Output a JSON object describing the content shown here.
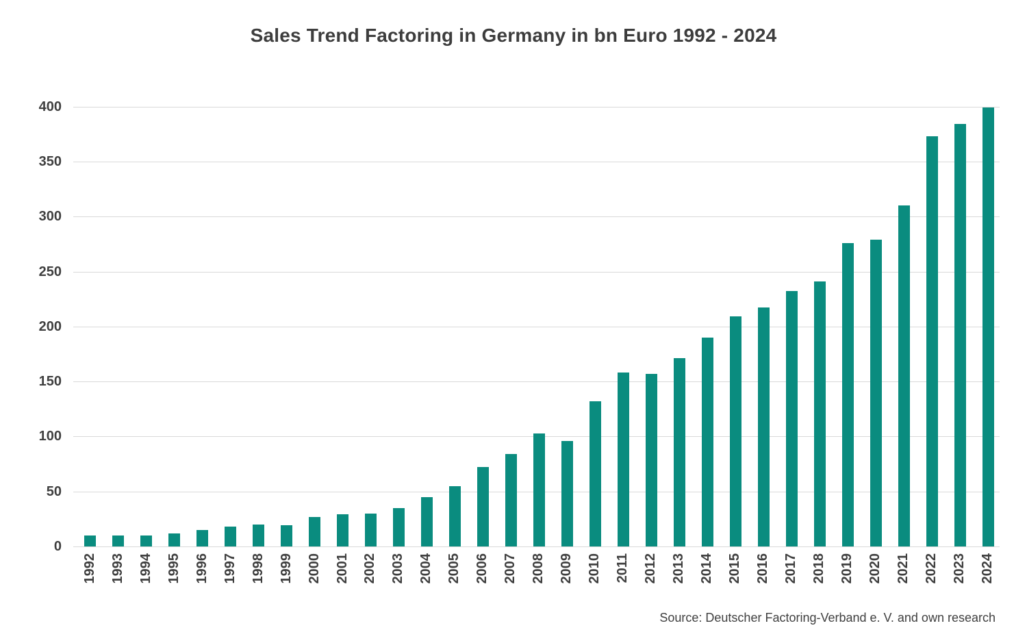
{
  "title": "Sales Trend Factoring in Germany in bn Euro 1992 - 2024",
  "source": "Source: Deutscher Factoring-Verband e. V. and own research",
  "colors": {
    "bar": "#0a8c7f",
    "gridline": "#d9d9d9",
    "text": "#3f3f3f",
    "background": "#ffffff"
  },
  "chart_data": {
    "type": "bar",
    "title": "Sales Trend Factoring in Germany in bn Euro 1992 - 2024",
    "categories": [
      "1992",
      "1993",
      "1994",
      "1995",
      "1996",
      "1997",
      "1998",
      "1999",
      "2000",
      "2001",
      "2002",
      "2003",
      "2004",
      "2005",
      "2006",
      "2007",
      "2008",
      "2009",
      "2010",
      "2011",
      "2012",
      "2013",
      "2014",
      "2015",
      "2016",
      "2017",
      "2018",
      "2019",
      "2020",
      "2021",
      "2022",
      "2023",
      "2024"
    ],
    "values": [
      10,
      10,
      10,
      12,
      15,
      18,
      20,
      19,
      27,
      29,
      30,
      35,
      45,
      55,
      72,
      84,
      103,
      96,
      132,
      158,
      157,
      171,
      190,
      209,
      217,
      232,
      241,
      276,
      279,
      310,
      373,
      384,
      399
    ],
    "unit": "bn Euro",
    "xlabel": "",
    "ylabel": "",
    "ylim": [
      0,
      400
    ],
    "yticks": [
      0,
      50,
      100,
      150,
      200,
      250,
      300,
      350,
      400
    ],
    "grid": true,
    "legend": false,
    "annotation": "Source: Deutscher Factoring-Verband e. V. and own research"
  }
}
